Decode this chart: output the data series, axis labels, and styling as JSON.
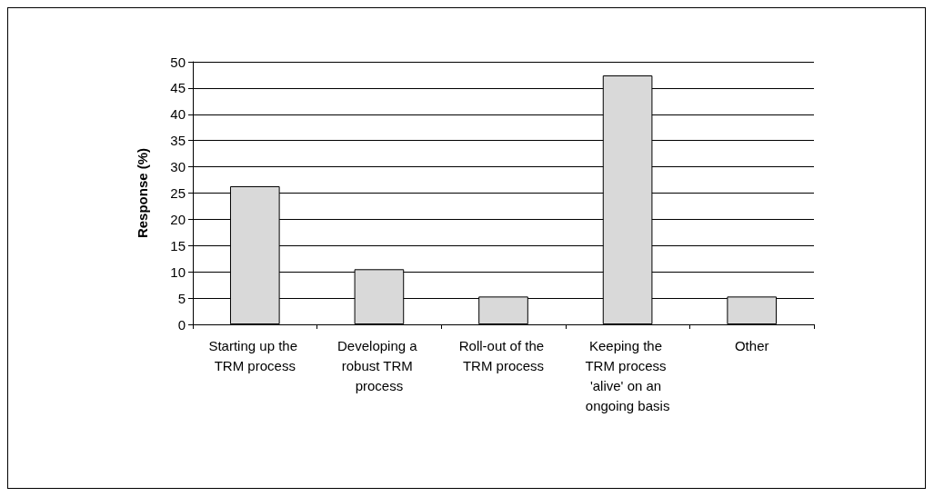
{
  "chart_data": {
    "type": "bar",
    "ylabel": "Response (%)",
    "categories": [
      "Starting up the TRM process",
      "Developing a robust TRM process",
      "Roll-out of the TRM process",
      "Keeping the TRM process 'alive' on an ongoing basis",
      "Other"
    ],
    "values": [
      26.3,
      10.5,
      5.3,
      47.4,
      5.3
    ],
    "color": "#d9d9d9",
    "ylim": [
      0,
      50
    ],
    "yticks": [
      0,
      5,
      10,
      15,
      20,
      25,
      30,
      35,
      40,
      45,
      50
    ],
    "grid": "y"
  }
}
